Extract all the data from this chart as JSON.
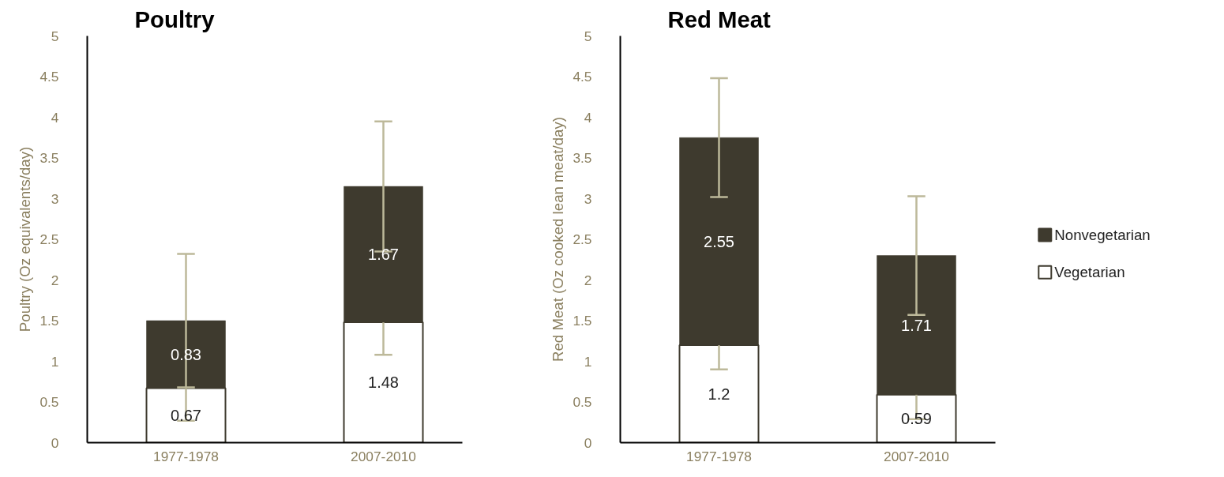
{
  "chart_data": [
    {
      "type": "bar",
      "title": "Poultry",
      "ylabel": "Poultry (Oz equivalents/day)",
      "categories": [
        "1977-1978",
        "2007-2010"
      ],
      "stacked": true,
      "data_labels": true,
      "grid": false,
      "ylim": [
        0,
        5
      ],
      "yticks": [
        0,
        0.5,
        1,
        1.5,
        2,
        2.5,
        3,
        3.5,
        4,
        4.5,
        5
      ],
      "series": [
        {
          "color": "#ffffff",
          "values": [
            0.67,
            1.48
          ],
          "errors": [
            0.4,
            0.4
          ]
        },
        {
          "color": "#3e3a2e",
          "values": [
            0.83,
            1.67
          ],
          "errors": [
            0.82,
            0.8
          ]
        }
      ]
    },
    {
      "type": "bar",
      "title": "Red Meat",
      "ylabel": "Red Meat (Oz cooked lean meat/day)",
      "categories": [
        "1977-1978",
        "2007-2010"
      ],
      "stacked": true,
      "data_labels": true,
      "grid": false,
      "legend": "right",
      "ylim": [
        0,
        5
      ],
      "yticks": [
        0,
        0.5,
        1,
        1.5,
        2,
        2.5,
        3,
        3.5,
        4,
        4.5,
        5
      ],
      "series": [
        {
          "name": "Vegetarian",
          "color": "#ffffff",
          "values": [
            1.2,
            0.59
          ],
          "errors": [
            0.3,
            0.3
          ]
        },
        {
          "name": "Nonvegetarian",
          "color": "#3e3a2e",
          "values": [
            2.55,
            1.71
          ],
          "errors": [
            0.73,
            0.73
          ]
        }
      ]
    }
  ]
}
